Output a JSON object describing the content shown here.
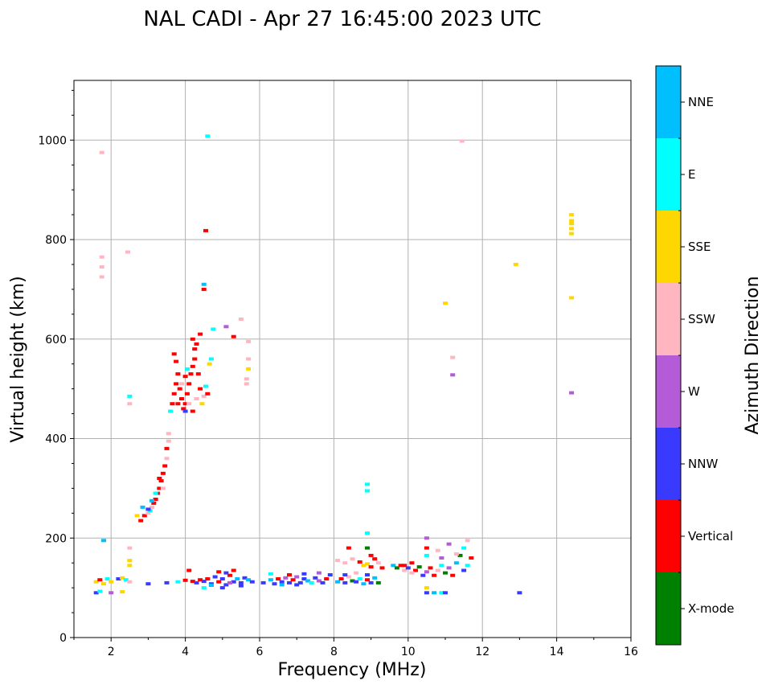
{
  "chart_data": {
    "type": "scatter",
    "title": "NAL CADI - Apr 27 16:45:00 2023 UTC",
    "xlabel": "Frequency (MHz)",
    "ylabel": "Virtual height (km)",
    "xlim": [
      1,
      16
    ],
    "ylim": [
      0,
      1120
    ],
    "xticks": [
      2,
      4,
      6,
      8,
      10,
      12,
      14,
      16
    ],
    "yticks": [
      0,
      200,
      400,
      600,
      800,
      1000
    ],
    "grid": true,
    "colorbar": {
      "title": "Azimuth Direction",
      "categories": [
        {
          "name": "X-mode",
          "color": "#008000"
        },
        {
          "name": "Vertical",
          "color": "#ff0000"
        },
        {
          "name": "NNW",
          "color": "#3a3aff"
        },
        {
          "name": "W",
          "color": "#b45bd8"
        },
        {
          "name": "SSW",
          "color": "#ffb6c1"
        },
        {
          "name": "SSE",
          "color": "#ffd700"
        },
        {
          "name": "E",
          "color": "#00ffff"
        },
        {
          "name": "NNE",
          "color": "#00bfff"
        }
      ]
    },
    "points": [
      [
        1.6,
        90,
        "NNW"
      ],
      [
        1.7,
        93,
        "E"
      ],
      [
        1.6,
        112,
        "SSE"
      ],
      [
        1.7,
        116,
        "Vertical"
      ],
      [
        1.8,
        108,
        "SSE"
      ],
      [
        1.9,
        118,
        "E"
      ],
      [
        2.0,
        112,
        "SSE"
      ],
      [
        2.2,
        118,
        "NNW"
      ],
      [
        2.3,
        120,
        "SSE"
      ],
      [
        2.4,
        116,
        "E"
      ],
      [
        2.5,
        112,
        "SSW"
      ],
      [
        2.3,
        92,
        "SSE"
      ],
      [
        2.0,
        90,
        "W"
      ],
      [
        1.8,
        195,
        "NNE"
      ],
      [
        1.75,
        975,
        "SSW"
      ],
      [
        1.75,
        765,
        "SSW"
      ],
      [
        1.75,
        745,
        "SSW"
      ],
      [
        1.75,
        725,
        "SSW"
      ],
      [
        2.45,
        775,
        "SSW"
      ],
      [
        2.5,
        485,
        "E"
      ],
      [
        2.5,
        470,
        "SSW"
      ],
      [
        2.5,
        180,
        "SSW"
      ],
      [
        2.5,
        155,
        "SSE"
      ],
      [
        2.5,
        145,
        "SSE"
      ],
      [
        2.8,
        235,
        "Vertical"
      ],
      [
        2.9,
        245,
        "Vertical"
      ],
      [
        3.0,
        250,
        "SSW"
      ],
      [
        3.05,
        255,
        "E"
      ],
      [
        3.1,
        262,
        "SSW"
      ],
      [
        3.15,
        270,
        "Vertical"
      ],
      [
        3.2,
        278,
        "Vertical"
      ],
      [
        3.25,
        290,
        "Vertical"
      ],
      [
        3.3,
        300,
        "Vertical"
      ],
      [
        3.35,
        315,
        "Vertical"
      ],
      [
        3.4,
        330,
        "Vertical"
      ],
      [
        3.45,
        345,
        "Vertical"
      ],
      [
        3.5,
        360,
        "SSW"
      ],
      [
        3.5,
        380,
        "Vertical"
      ],
      [
        3.55,
        395,
        "SSW"
      ],
      [
        3.55,
        410,
        "SSW"
      ],
      [
        2.7,
        245,
        "SSE"
      ],
      [
        2.85,
        262,
        "NNE"
      ],
      [
        3.0,
        258,
        "NNW"
      ],
      [
        3.1,
        275,
        "NNE"
      ],
      [
        3.2,
        290,
        "E"
      ],
      [
        3.3,
        320,
        "Vertical"
      ],
      [
        3.4,
        300,
        "SSW"
      ],
      [
        3.6,
        455,
        "E"
      ],
      [
        3.65,
        470,
        "Vertical"
      ],
      [
        3.7,
        490,
        "Vertical"
      ],
      [
        3.75,
        510,
        "Vertical"
      ],
      [
        3.8,
        530,
        "Vertical"
      ],
      [
        3.75,
        555,
        "Vertical"
      ],
      [
        3.7,
        570,
        "Vertical"
      ],
      [
        3.85,
        500,
        "Vertical"
      ],
      [
        3.9,
        480,
        "Vertical"
      ],
      [
        3.95,
        460,
        "Vertical"
      ],
      [
        4.0,
        470,
        "Vertical"
      ],
      [
        4.05,
        490,
        "Vertical"
      ],
      [
        4.1,
        510,
        "Vertical"
      ],
      [
        4.15,
        530,
        "Vertical"
      ],
      [
        4.2,
        545,
        "Vertical"
      ],
      [
        4.25,
        560,
        "Vertical"
      ],
      [
        4.25,
        580,
        "Vertical"
      ],
      [
        4.3,
        590,
        "Vertical"
      ],
      [
        4.2,
        600,
        "Vertical"
      ],
      [
        4.35,
        530,
        "Vertical"
      ],
      [
        4.4,
        500,
        "Vertical"
      ],
      [
        4.4,
        610,
        "Vertical"
      ],
      [
        4.45,
        470,
        "SSE"
      ],
      [
        4.5,
        485,
        "SSW"
      ],
      [
        4.55,
        505,
        "E"
      ],
      [
        4.6,
        490,
        "Vertical"
      ],
      [
        4.65,
        550,
        "SSE"
      ],
      [
        4.7,
        560,
        "E"
      ],
      [
        4.75,
        620,
        "E"
      ],
      [
        4.5,
        700,
        "Vertical"
      ],
      [
        4.5,
        710,
        "NNE"
      ],
      [
        4.55,
        818,
        "Vertical"
      ],
      [
        4.6,
        1008,
        "E"
      ],
      [
        4.2,
        455,
        "Vertical"
      ],
      [
        4.1,
        470,
        "SSW"
      ],
      [
        3.9,
        510,
        "SSW"
      ],
      [
        4.05,
        540,
        "E"
      ],
      [
        4.0,
        525,
        "Vertical"
      ],
      [
        3.8,
        470,
        "Vertical"
      ],
      [
        4.3,
        480,
        "SSW"
      ],
      [
        4.0,
        455,
        "NNW"
      ],
      [
        5.1,
        625,
        "W"
      ],
      [
        5.3,
        605,
        "Vertical"
      ],
      [
        5.5,
        640,
        "SSW"
      ],
      [
        5.7,
        595,
        "SSW"
      ],
      [
        5.7,
        560,
        "SSW"
      ],
      [
        5.7,
        540,
        "SSE"
      ],
      [
        5.65,
        520,
        "SSW"
      ],
      [
        5.65,
        510,
        "SSW"
      ],
      [
        4.0,
        115,
        "Vertical"
      ],
      [
        4.2,
        113,
        "Vertical"
      ],
      [
        4.3,
        110,
        "NNW"
      ],
      [
        4.4,
        116,
        "Vertical"
      ],
      [
        4.5,
        113,
        "NNW"
      ],
      [
        4.6,
        118,
        "Vertical"
      ],
      [
        4.7,
        108,
        "NNW"
      ],
      [
        4.8,
        122,
        "NNW"
      ],
      [
        4.9,
        112,
        "Vertical"
      ],
      [
        5.0,
        118,
        "NNW"
      ],
      [
        5.1,
        106,
        "NNW"
      ],
      [
        5.2,
        125,
        "Vertical"
      ],
      [
        5.3,
        112,
        "NNW"
      ],
      [
        5.4,
        118,
        "NNE"
      ],
      [
        5.5,
        110,
        "NNW"
      ],
      [
        5.6,
        120,
        "NNW"
      ],
      [
        5.7,
        116,
        "NNE"
      ],
      [
        5.8,
        112,
        "NNW"
      ],
      [
        4.9,
        132,
        "Vertical"
      ],
      [
        5.1,
        130,
        "NNW"
      ],
      [
        5.3,
        135,
        "Vertical"
      ],
      [
        5.0,
        100,
        "NNW"
      ],
      [
        4.5,
        100,
        "E"
      ],
      [
        4.7,
        105,
        "NNE"
      ],
      [
        5.5,
        104,
        "NNW"
      ],
      [
        3.8,
        112,
        "E"
      ],
      [
        3.5,
        110,
        "NNW"
      ],
      [
        3.0,
        108,
        "NNW"
      ],
      [
        4.1,
        135,
        "Vertical"
      ],
      [
        5.2,
        110,
        "W"
      ],
      [
        6.1,
        110,
        "NNW"
      ],
      [
        6.3,
        116,
        "NNE"
      ],
      [
        6.4,
        108,
        "NNW"
      ],
      [
        6.5,
        118,
        "Vertical"
      ],
      [
        6.6,
        112,
        "NNW"
      ],
      [
        6.7,
        120,
        "W"
      ],
      [
        6.8,
        110,
        "NNW"
      ],
      [
        6.9,
        116,
        "Vertical"
      ],
      [
        7.0,
        122,
        "W"
      ],
      [
        7.1,
        110,
        "NNW"
      ],
      [
        7.2,
        118,
        "NNW"
      ],
      [
        7.3,
        114,
        "NNE"
      ],
      [
        7.4,
        110,
        "E"
      ],
      [
        7.5,
        120,
        "NNW"
      ],
      [
        7.6,
        114,
        "W"
      ],
      [
        7.7,
        110,
        "NNW"
      ],
      [
        7.8,
        118,
        "Vertical"
      ],
      [
        7.9,
        126,
        "NNW"
      ],
      [
        6.8,
        126,
        "Vertical"
      ],
      [
        7.2,
        128,
        "NNW"
      ],
      [
        7.6,
        130,
        "W"
      ],
      [
        6.3,
        128,
        "E"
      ],
      [
        6.6,
        106,
        "NNE"
      ],
      [
        7.0,
        106,
        "NNW"
      ],
      [
        8.1,
        112,
        "NNE"
      ],
      [
        8.2,
        118,
        "Vertical"
      ],
      [
        8.3,
        110,
        "NNW"
      ],
      [
        8.4,
        122,
        "SSW"
      ],
      [
        8.5,
        114,
        "X-mode"
      ],
      [
        8.6,
        112,
        "NNW"
      ],
      [
        8.7,
        118,
        "E"
      ],
      [
        8.8,
        108,
        "NNE"
      ],
      [
        8.9,
        116,
        "Vertical"
      ],
      [
        9.0,
        110,
        "NNW"
      ],
      [
        9.1,
        120,
        "NNE"
      ],
      [
        9.2,
        110,
        "X-mode"
      ],
      [
        8.3,
        126,
        "NNW"
      ],
      [
        8.6,
        130,
        "SSW"
      ],
      [
        8.9,
        126,
        "NNW"
      ],
      [
        8.1,
        155,
        "SSW"
      ],
      [
        8.3,
        150,
        "SSW"
      ],
      [
        8.5,
        158,
        "SSW"
      ],
      [
        8.7,
        152,
        "Vertical"
      ],
      [
        8.9,
        148,
        "SSE"
      ],
      [
        9.0,
        142,
        "Vertical"
      ],
      [
        9.1,
        158,
        "Vertical"
      ],
      [
        9.2,
        150,
        "SSW"
      ],
      [
        9.3,
        140,
        "Vertical"
      ],
      [
        8.4,
        180,
        "Vertical"
      ],
      [
        8.9,
        180,
        "X-mode"
      ],
      [
        9.0,
        165,
        "Vertical"
      ],
      [
        9.6,
        145,
        "NNE"
      ],
      [
        9.7,
        140,
        "X-mode"
      ],
      [
        9.8,
        145,
        "Vertical"
      ],
      [
        9.9,
        135,
        "SSW"
      ],
      [
        10.0,
        140,
        "NNW"
      ],
      [
        10.1,
        150,
        "Vertical"
      ],
      [
        10.2,
        135,
        "Vertical"
      ],
      [
        10.3,
        142,
        "X-mode"
      ],
      [
        10.4,
        125,
        "NNW"
      ],
      [
        10.5,
        132,
        "W"
      ],
      [
        10.6,
        140,
        "Vertical"
      ],
      [
        10.7,
        125,
        "Vertical"
      ],
      [
        10.8,
        135,
        "SSW"
      ],
      [
        10.9,
        145,
        "E"
      ],
      [
        11.0,
        130,
        "X-mode"
      ],
      [
        11.1,
        140,
        "W"
      ],
      [
        11.2,
        125,
        "Vertical"
      ],
      [
        11.3,
        150,
        "NNE"
      ],
      [
        11.4,
        165,
        "X-mode"
      ],
      [
        11.5,
        135,
        "NNW"
      ],
      [
        11.6,
        145,
        "E"
      ],
      [
        11.7,
        160,
        "Vertical"
      ],
      [
        10.5,
        165,
        "E"
      ],
      [
        10.5,
        180,
        "Vertical"
      ],
      [
        10.5,
        200,
        "W"
      ],
      [
        10.8,
        175,
        "SSW"
      ],
      [
        11.1,
        188,
        "W"
      ],
      [
        11.5,
        180,
        "E"
      ],
      [
        11.6,
        195,
        "SSW"
      ],
      [
        11.3,
        168,
        "SSW"
      ],
      [
        10.9,
        160,
        "W"
      ],
      [
        10.1,
        130,
        "SSW"
      ],
      [
        9.9,
        145,
        "Vertical"
      ],
      [
        10.7,
        90,
        "NNE"
      ],
      [
        10.5,
        90,
        "NNW"
      ],
      [
        10.5,
        100,
        "SSE"
      ],
      [
        10.9,
        90,
        "E"
      ],
      [
        11.0,
        90,
        "NNW"
      ],
      [
        8.9,
        210,
        "E"
      ],
      [
        8.9,
        295,
        "E"
      ],
      [
        8.9,
        308,
        "E"
      ],
      [
        8.8,
        145,
        "SSE"
      ],
      [
        11.45,
        998,
        "SSW"
      ],
      [
        11.0,
        672,
        "SSE"
      ],
      [
        11.2,
        563,
        "SSW"
      ],
      [
        11.2,
        528,
        "W"
      ],
      [
        12.9,
        750,
        "SSE"
      ],
      [
        14.4,
        850,
        "SSE"
      ],
      [
        14.4,
        838,
        "SSE"
      ],
      [
        14.4,
        832,
        "SSE"
      ],
      [
        14.4,
        822,
        "SSE"
      ],
      [
        14.4,
        812,
        "SSE"
      ],
      [
        14.4,
        683,
        "SSE"
      ],
      [
        14.4,
        492,
        "W"
      ],
      [
        13.0,
        90,
        "NNW"
      ]
    ]
  }
}
